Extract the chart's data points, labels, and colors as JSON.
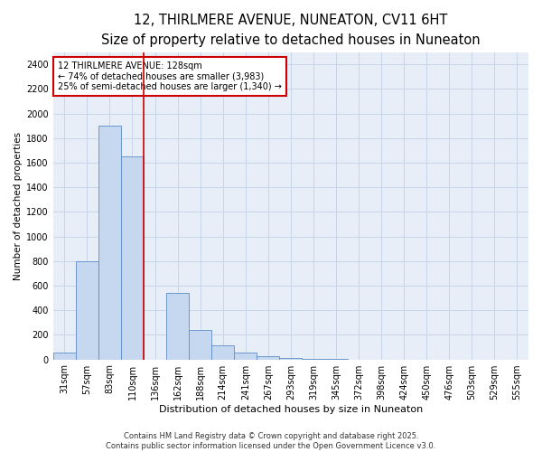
{
  "title": "12, THIRLMERE AVENUE, NUNEATON, CV11 6HT",
  "subtitle": "Size of property relative to detached houses in Nuneaton",
  "xlabel": "Distribution of detached houses by size in Nuneaton",
  "ylabel": "Number of detached properties",
  "categories": [
    "31sqm",
    "57sqm",
    "83sqm",
    "110sqm",
    "136sqm",
    "162sqm",
    "188sqm",
    "214sqm",
    "241sqm",
    "267sqm",
    "293sqm",
    "319sqm",
    "345sqm",
    "372sqm",
    "398sqm",
    "424sqm",
    "450sqm",
    "476sqm",
    "503sqm",
    "529sqm",
    "555sqm"
  ],
  "values": [
    55,
    800,
    1900,
    1650,
    0,
    540,
    240,
    115,
    55,
    30,
    10,
    3,
    1,
    0,
    0,
    0,
    0,
    0,
    0,
    0,
    0
  ],
  "bar_color": "#c5d8f0",
  "bar_edge_color": "#5b8dc8",
  "vline_color": "#cc0000",
  "vline_x_index": 4,
  "annotation_text": "12 THIRLMERE AVENUE: 128sqm\n← 74% of detached houses are smaller (3,983)\n25% of semi-detached houses are larger (1,340) →",
  "annotation_box_color": "#cc0000",
  "ylim": [
    0,
    2500
  ],
  "yticks": [
    0,
    200,
    400,
    600,
    800,
    1000,
    1200,
    1400,
    1600,
    1800,
    2000,
    2200,
    2400
  ],
  "grid_color": "#c8d4e8",
  "bg_color": "#e8eef8",
  "footer": "Contains HM Land Registry data © Crown copyright and database right 2025.\nContains public sector information licensed under the Open Government Licence v3.0.",
  "title_fontsize": 10.5,
  "subtitle_fontsize": 9,
  "xlabel_fontsize": 8,
  "ylabel_fontsize": 7.5,
  "tick_fontsize": 7,
  "annotation_fontsize": 7,
  "footer_fontsize": 6
}
